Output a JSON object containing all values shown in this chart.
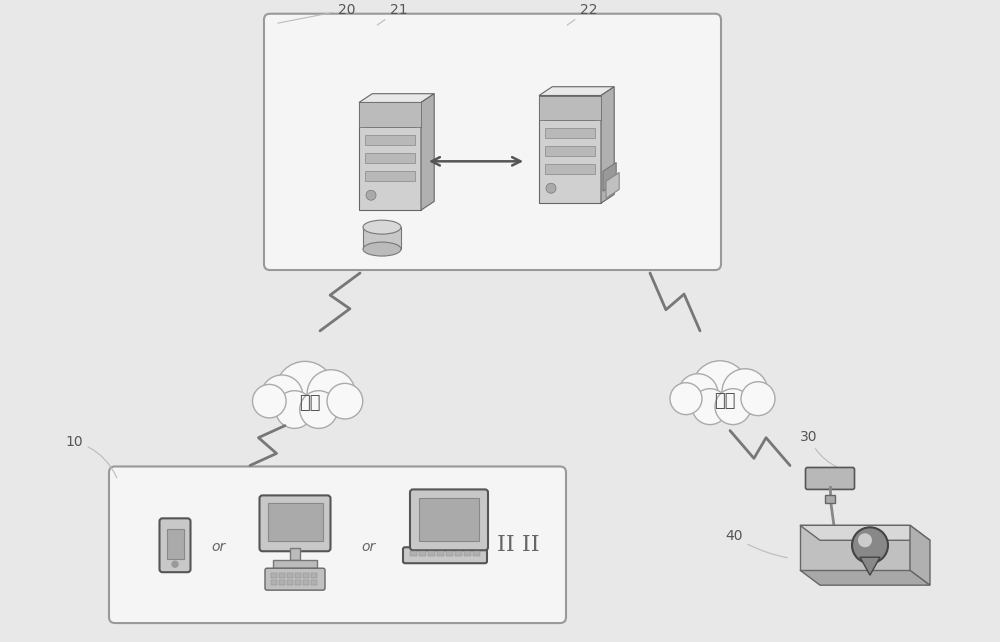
{
  "bg_color": "#e8e8e8",
  "box_fill": "#f5f5f5",
  "box_edge": "#999999",
  "server_light": "#e0e0e0",
  "server_mid": "#c8c8c8",
  "server_dark": "#a0a0a0",
  "cloud_fill": "#f8f8f8",
  "cloud_edge": "#aaaaaa",
  "text_color": "#555555",
  "arrow_color": "#666666",
  "lightning_color": "#777777",
  "network_text": "网络",
  "label_20": "20",
  "label_21": "21",
  "label_22": "22",
  "label_10": "10",
  "label_30": "30",
  "label_40": "40",
  "ii_text": "II II"
}
